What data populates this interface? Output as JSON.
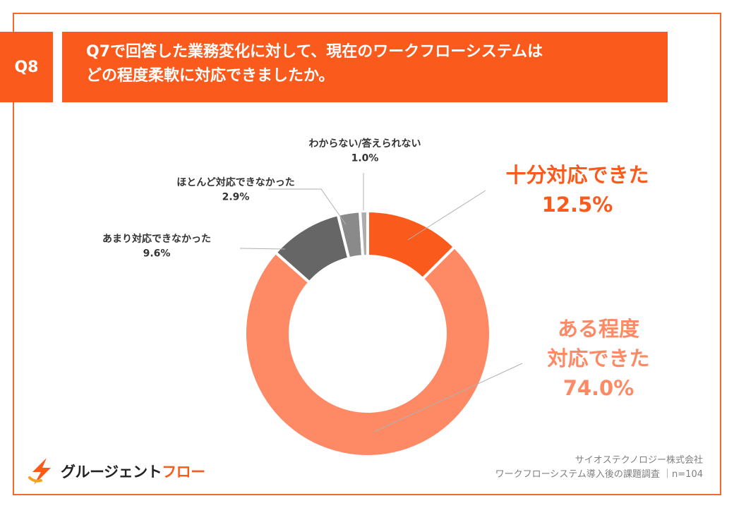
{
  "question": {
    "badge": "Q8",
    "line1": "Q7で回答した業務変化に対して、現在のワークフローシステムは",
    "line2": "どの程度柔軟に対応できましたか。"
  },
  "chart_data": {
    "type": "pie",
    "donut": true,
    "slices": [
      {
        "label": "十分対応できた",
        "value": 12.5,
        "display": "12.5%",
        "color": "#fa5a1c"
      },
      {
        "label": "ある程度\n対応できた",
        "value": 74.0,
        "display": "74.0%",
        "color": "#fd8a65"
      },
      {
        "label": "あまり対応できなかった",
        "value": 9.6,
        "display": "9.6%",
        "color": "#666666"
      },
      {
        "label": "ほとんど対応できなかった",
        "value": 2.9,
        "display": "2.9%",
        "color": "#8a8a8a"
      },
      {
        "label": "わからない/答えられない",
        "value": 1.0,
        "display": "1.0%",
        "color": "#adadad"
      }
    ],
    "legend": "none"
  },
  "source": {
    "company": "サイオステクノロジー株式会社",
    "survey": "ワークフローシステム導入後の課題調査 ｜n=104"
  },
  "logo": {
    "text_main": "グルージェント",
    "text_accent": "フロー"
  }
}
